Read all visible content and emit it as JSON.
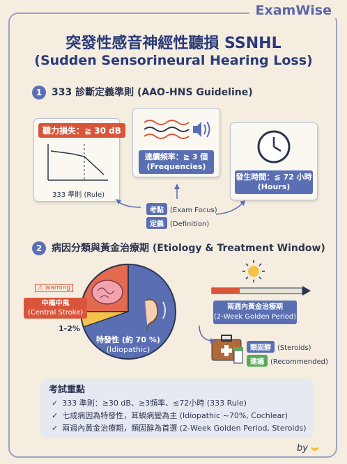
{
  "brand": "ExamWise",
  "title_line1": "突發性感音神經性聽損 SSNHL",
  "title_line2": "(Sudden Sensorineural Hearing Loss)",
  "section1": {
    "number": "1",
    "title": "333 診斷定義準則 (AAO-HNS Guideline)"
  },
  "card_hearing": {
    "tag": "聽力損失：≧ 30 dB",
    "caption": "333 準則 (Rule)"
  },
  "card_freq": {
    "line1": "連續頻率：≧ 3 個",
    "line2": "(Frequencies)"
  },
  "card_time": {
    "line1": "發生時間：≦ 72 小時",
    "line2": "(Hours)"
  },
  "exam_focus": {
    "label": "考點",
    "text": "(Exam Focus)"
  },
  "definition": {
    "label": "定義",
    "text": "(Definition)"
  },
  "section2": {
    "number": "2",
    "title": "病因分類與黃金治療期 (Etiology & Treatment Window)"
  },
  "warning": "warning",
  "central": {
    "line1": "中樞中風",
    "line2": "(Central Stroke)",
    "percent": "1-2%"
  },
  "idiopathic": {
    "line1": "特發性 (約 70 %)",
    "line2": "(Idiopathic)"
  },
  "golden": {
    "line1": "兩週內黃金治療期",
    "line2": "(2-Week Golden Period)"
  },
  "steroids": {
    "label": "類固醇",
    "text": "(Steroids)"
  },
  "recommended": {
    "label": "建議",
    "text": "(Recommended)"
  },
  "summary": {
    "title": "考試重點",
    "items": [
      "333 準則：≥30 dB、≥3頻率、≤72小時 (333 Rule)",
      "七成病因為特發性，耳蝸病變為主 (Idiopathic ~70%, Cochlear)",
      "兩週內黃金治療期，類固醇為首選 (2-Week Golden Period, Steroids)"
    ]
  },
  "signature": "by",
  "colors": {
    "accent_blue": "#5a6fb3",
    "accent_red": "#d9553a",
    "green": "#5aa95a",
    "background": "#f4ede0"
  },
  "icons": [
    "line-chart-icon",
    "sound-waves-icon",
    "speaker-icon",
    "clock-icon",
    "brain-icon",
    "ear-icon",
    "sun-icon",
    "medical-kit-icon",
    "pill-bottle-icon",
    "banana-icon"
  ]
}
